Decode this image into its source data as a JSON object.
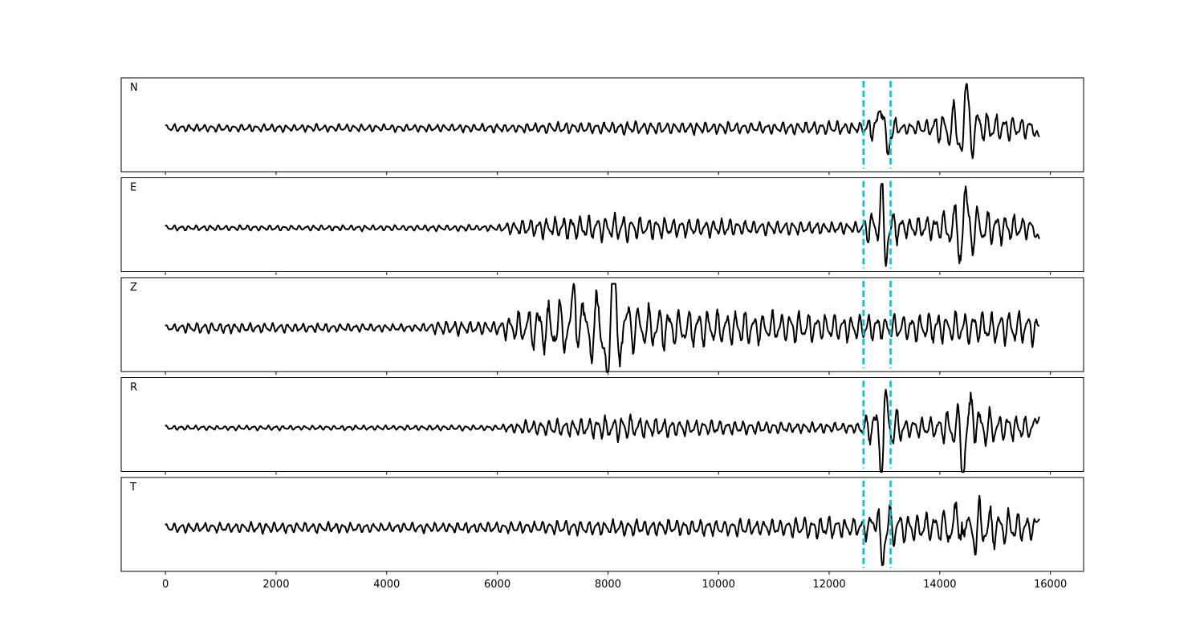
{
  "chart_data": {
    "type": "line",
    "title": "",
    "xlabel": "",
    "ylabel": "",
    "xlim": [
      -800,
      16600
    ],
    "x_ticks": [
      0,
      2000,
      4000,
      6000,
      8000,
      10000,
      12000,
      14000,
      16000
    ],
    "x_tick_labels": [
      "0",
      "2000",
      "4000",
      "6000",
      "8000",
      "10000",
      "12000",
      "14000",
      "16000"
    ],
    "x_range": [
      0,
      15800
    ],
    "y_ticks_visible": false,
    "grid": false,
    "legend": "none",
    "colors": {
      "trace": "#000000",
      "marker": "#17becf"
    },
    "markers": {
      "style": "dashed",
      "x": [
        12620,
        13110
      ]
    },
    "panels": [
      {
        "label": "N",
        "description": "seismogram trace",
        "envelope": [
          [
            0,
            0.08
          ],
          [
            2000,
            0.08
          ],
          [
            4000,
            0.08
          ],
          [
            6000,
            0.09
          ],
          [
            7000,
            0.12
          ],
          [
            9000,
            0.14
          ],
          [
            11000,
            0.12
          ],
          [
            12000,
            0.15
          ],
          [
            12600,
            0.12
          ],
          [
            12950,
            0.5
          ],
          [
            13300,
            0.1
          ],
          [
            13800,
            0.2
          ],
          [
            14200,
            0.5
          ],
          [
            14450,
            0.9
          ],
          [
            14800,
            0.35
          ],
          [
            15300,
            0.28
          ],
          [
            15800,
            0.18
          ]
        ],
        "events": [
          {
            "x": 12950,
            "amp": 0.75
          },
          {
            "x": 13050,
            "amp": -0.7
          },
          {
            "x": 14450,
            "amp": 0.95
          },
          {
            "x": 14420,
            "amp": -0.75
          }
        ],
        "end_offset": -0.2
      },
      {
        "label": "E",
        "description": "seismogram trace",
        "envelope": [
          [
            0,
            0.06
          ],
          [
            3000,
            0.06
          ],
          [
            6000,
            0.07
          ],
          [
            6400,
            0.18
          ],
          [
            7200,
            0.25
          ],
          [
            8200,
            0.3
          ],
          [
            9500,
            0.2
          ],
          [
            11000,
            0.16
          ],
          [
            12500,
            0.12
          ],
          [
            12950,
            0.6
          ],
          [
            13400,
            0.2
          ],
          [
            14000,
            0.3
          ],
          [
            14450,
            0.8
          ],
          [
            14800,
            0.4
          ],
          [
            15400,
            0.28
          ],
          [
            15800,
            0.2
          ]
        ],
        "events": [
          {
            "x": 12950,
            "amp": 0.95
          },
          {
            "x": 13000,
            "amp": -0.8
          },
          {
            "x": 14450,
            "amp": 0.9
          },
          {
            "x": 14420,
            "amp": -0.7
          }
        ],
        "end_offset": -0.25
      },
      {
        "label": "Z",
        "description": "seismogram trace",
        "envelope": [
          [
            0,
            0.07
          ],
          [
            600,
            0.12
          ],
          [
            2000,
            0.1
          ],
          [
            4500,
            0.08
          ],
          [
            5000,
            0.15
          ],
          [
            6000,
            0.15
          ],
          [
            6500,
            0.45
          ],
          [
            7400,
            0.7
          ],
          [
            8100,
            1.0
          ],
          [
            8600,
            0.5
          ],
          [
            9500,
            0.45
          ],
          [
            11000,
            0.35
          ],
          [
            12500,
            0.3
          ],
          [
            13200,
            0.3
          ],
          [
            14000,
            0.35
          ],
          [
            15000,
            0.35
          ],
          [
            15800,
            0.4
          ]
        ],
        "events": [
          {
            "x": 8100,
            "amp": 0.95
          },
          {
            "x": 8000,
            "amp": -0.7
          },
          {
            "x": 7400,
            "amp": 0.7
          }
        ],
        "end_offset": 0.05
      },
      {
        "label": "R",
        "description": "seismogram trace",
        "envelope": [
          [
            0,
            0.05
          ],
          [
            3000,
            0.05
          ],
          [
            6000,
            0.06
          ],
          [
            6500,
            0.15
          ],
          [
            7500,
            0.2
          ],
          [
            8200,
            0.28
          ],
          [
            9500,
            0.18
          ],
          [
            11000,
            0.13
          ],
          [
            12500,
            0.1
          ],
          [
            13000,
            0.7
          ],
          [
            13400,
            0.2
          ],
          [
            14000,
            0.25
          ],
          [
            14450,
            0.7
          ],
          [
            15000,
            0.35
          ],
          [
            15800,
            0.25
          ]
        ],
        "events": [
          {
            "x": 13020,
            "amp": 0.7
          },
          {
            "x": 12970,
            "amp": -0.85
          },
          {
            "x": 14420,
            "amp": -0.85
          },
          {
            "x": 14600,
            "amp": 0.5
          }
        ],
        "end_offset": 0.25
      },
      {
        "label": "T",
        "description": "seismogram trace",
        "envelope": [
          [
            0,
            0.1
          ],
          [
            2000,
            0.12
          ],
          [
            4000,
            0.1
          ],
          [
            6000,
            0.12
          ],
          [
            7000,
            0.15
          ],
          [
            9000,
            0.18
          ],
          [
            11000,
            0.18
          ],
          [
            11800,
            0.25
          ],
          [
            12600,
            0.2
          ],
          [
            12950,
            0.55
          ],
          [
            13400,
            0.3
          ],
          [
            14000,
            0.35
          ],
          [
            14450,
            0.9
          ],
          [
            14800,
            0.5
          ],
          [
            15400,
            0.35
          ],
          [
            15800,
            0.22
          ]
        ],
        "events": [
          {
            "x": 12950,
            "amp": -0.8
          },
          {
            "x": 12850,
            "amp": 0.4
          },
          {
            "x": 14400,
            "amp": 0.85
          },
          {
            "x": 14450,
            "amp": -0.8
          }
        ],
        "end_offset": 0.2
      }
    ]
  }
}
